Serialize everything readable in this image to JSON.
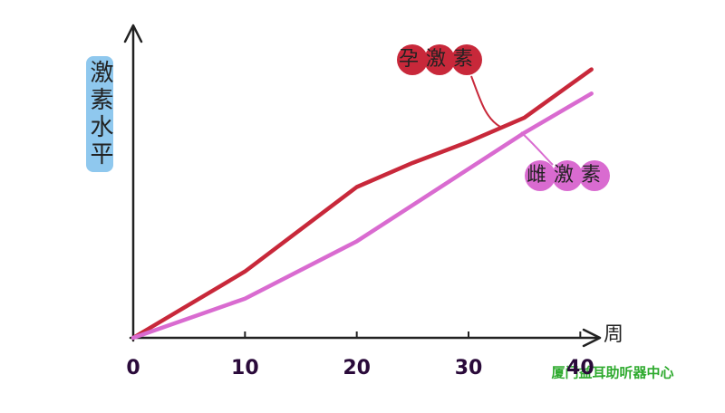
{
  "chart_data": {
    "type": "line",
    "y_label": "激素水平",
    "x_label": "周",
    "x": [
      0,
      10,
      20,
      25,
      30,
      35,
      41
    ],
    "series": [
      {
        "name": "孕激素",
        "color": "#c8283a",
        "values": [
          0,
          22,
          50,
          58,
          65,
          73,
          89
        ]
      },
      {
        "name": "雌激素",
        "color": "#d96bd0",
        "values": [
          0,
          13,
          32,
          44,
          56,
          68,
          81
        ]
      }
    ],
    "xlim": [
      0,
      42
    ],
    "ylim": [
      0,
      100
    ],
    "xticks": [
      0,
      10,
      20,
      30,
      40
    ],
    "watermark": "厦门益耳助听器中心"
  }
}
